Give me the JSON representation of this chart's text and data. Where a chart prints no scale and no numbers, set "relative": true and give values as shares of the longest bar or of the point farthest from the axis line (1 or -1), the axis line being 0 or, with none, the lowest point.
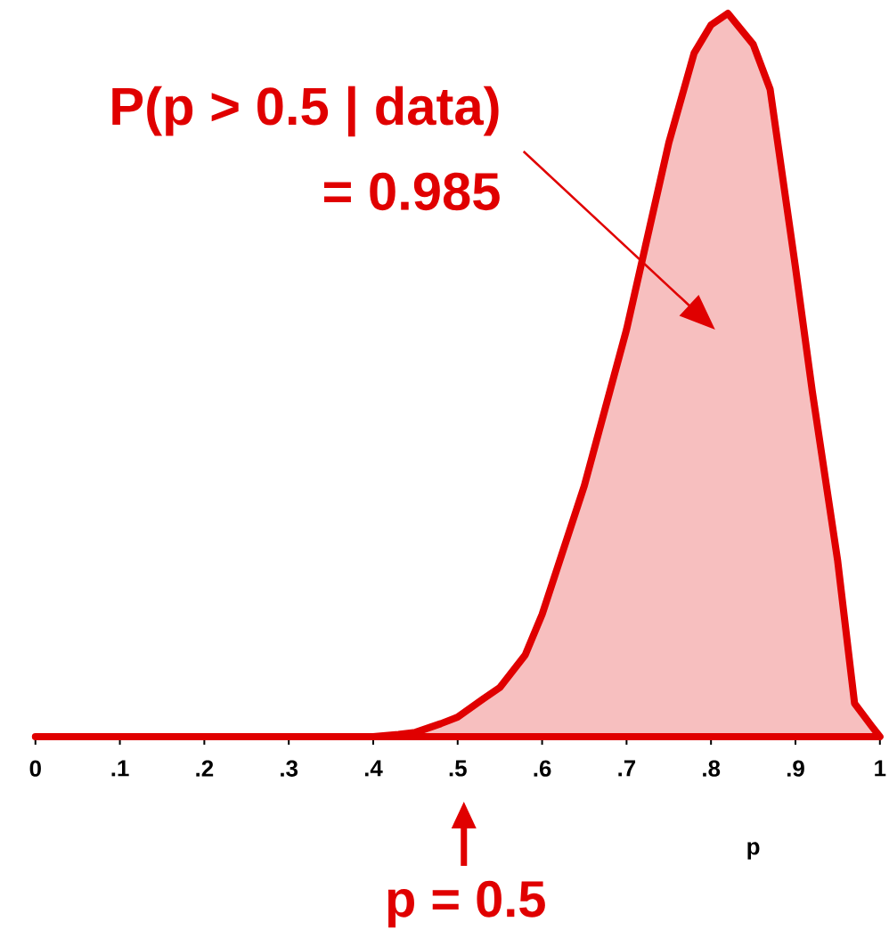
{
  "chart_data": {
    "type": "area",
    "relative": true,
    "xlabel": "p",
    "xlim": [
      0,
      1
    ],
    "xticks": [
      0,
      {
        "value": 0.1,
        "label": ".1"
      },
      {
        "value": 0.2,
        "label": ".2"
      },
      {
        "value": 0.3,
        "label": ".3"
      },
      {
        "value": 0.4,
        "label": ".4"
      },
      {
        "value": 0.5,
        "label": ".5"
      },
      {
        "value": 0.6,
        "label": ".6"
      },
      {
        "value": 0.7,
        "label": ".7"
      },
      {
        "value": 0.8,
        "label": ".8"
      },
      {
        "value": 0.9,
        "label": ".9"
      },
      1
    ],
    "x": [
      0,
      0.4,
      0.43,
      0.45,
      0.48,
      0.5,
      0.53,
      0.55,
      0.58,
      0.6,
      0.65,
      0.7,
      0.75,
      0.78,
      0.8,
      0.82,
      0.85,
      0.87,
      0.9,
      0.92,
      0.95,
      0.97,
      0.99,
      1
    ],
    "series": [
      {
        "color": "#e00000",
        "values": [
          0,
          0,
          0.003,
          0.006,
          0.018,
          0.027,
          0.052,
          0.068,
          0.113,
          0.169,
          0.347,
          0.563,
          0.821,
          0.945,
          0.984,
          1,
          0.957,
          0.895,
          0.649,
          0.477,
          0.243,
          0.046,
          0.015,
          0
        ]
      }
    ],
    "annotations": [
      "P(p > 0.5 | data)",
      "= 0.985",
      "p = 0.5"
    ]
  }
}
